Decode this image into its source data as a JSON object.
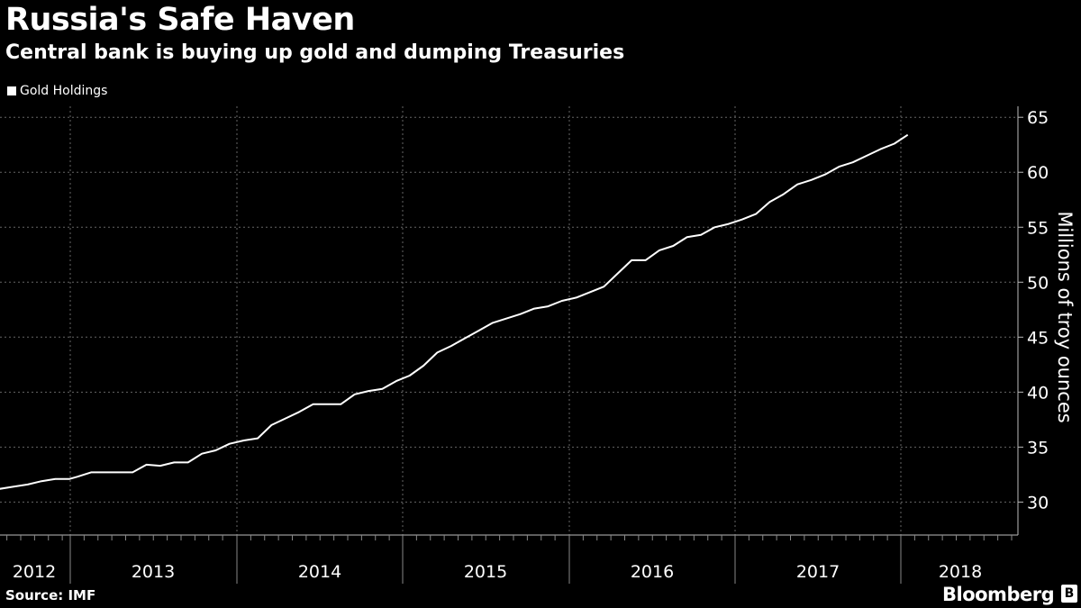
{
  "header": {
    "title": "Russia's Safe Haven",
    "subtitle": "Central bank is buying up gold and dumping Treasuries"
  },
  "footer": {
    "source": "Source: IMF",
    "brand": "Bloomberg"
  },
  "colors": {
    "background": "#000000",
    "line": "#ffffff",
    "grid": "#666666"
  },
  "chart_data": {
    "type": "line",
    "title": "Russia's Safe Haven",
    "subtitle": "Central bank is buying up gold and dumping Treasuries",
    "xlabel": "",
    "ylabel": "Millions of troy ounces",
    "y_axis_position": "right",
    "ylim": [
      27,
      66
    ],
    "yticks": [
      30,
      35,
      40,
      45,
      50,
      55,
      60,
      65
    ],
    "grid": true,
    "legend": "top-left",
    "x_tick_labels": [
      "2012",
      "2013",
      "2014",
      "2015",
      "2016",
      "2017",
      "2018"
    ],
    "series": [
      {
        "name": "Gold Holdings",
        "x": [
          "2012-01",
          "2012-02",
          "2012-03",
          "2012-04",
          "2012-05",
          "2012-06",
          "2012-07",
          "2012-08",
          "2012-09",
          "2012-10",
          "2012-11",
          "2012-12",
          "2013-01",
          "2013-02",
          "2013-03",
          "2013-04",
          "2013-05",
          "2013-06",
          "2013-07",
          "2013-08",
          "2013-09",
          "2013-10",
          "2013-11",
          "2013-12",
          "2014-01",
          "2014-02",
          "2014-03",
          "2014-04",
          "2014-05",
          "2014-06",
          "2014-07",
          "2014-08",
          "2014-09",
          "2014-10",
          "2014-11",
          "2014-12",
          "2015-01",
          "2015-02",
          "2015-03",
          "2015-04",
          "2015-05",
          "2015-06",
          "2015-07",
          "2015-08",
          "2015-09",
          "2015-10",
          "2015-11",
          "2015-12",
          "2016-01",
          "2016-02",
          "2016-03",
          "2016-04",
          "2016-05",
          "2016-06",
          "2016-07",
          "2016-08",
          "2016-09",
          "2016-10",
          "2016-11",
          "2016-12",
          "2017-01",
          "2017-02",
          "2017-03",
          "2017-04",
          "2017-05",
          "2017-06",
          "2017-07",
          "2017-08",
          "2017-09",
          "2017-10",
          "2017-11",
          "2017-12",
          "2018-01",
          "2018-02",
          "2018-03",
          "2018-04",
          "2018-05",
          "2018-06",
          "2018-07",
          "2018-08",
          "2018-09",
          "2018-10",
          "2018-11",
          "2018-12"
        ],
        "values": [
          30.2,
          30.2,
          30.1,
          30.1,
          30.2,
          30.8,
          31.2,
          31.4,
          31.6,
          31.9,
          32.1,
          32.1,
          32.3,
          32.7,
          32.7,
          32.7,
          32.7,
          33.4,
          33.3,
          33.6,
          33.6,
          34.4,
          34.7,
          35.3,
          35.6,
          35.8,
          37.0,
          37.6,
          38.2,
          38.9,
          38.9,
          38.9,
          39.8,
          40.1,
          40.3,
          41.0,
          41.5,
          42.4,
          43.6,
          44.2,
          44.9,
          45.6,
          46.3,
          46.7,
          47.1,
          47.6,
          47.8,
          48.3,
          48.6,
          49.1,
          49.6,
          50.8,
          52.0,
          52.0,
          52.9,
          53.3,
          54.1,
          54.3,
          55.0,
          55.3,
          55.7,
          56.2,
          57.3,
          58.0,
          58.9,
          59.3,
          59.8,
          60.5,
          60.9,
          61.5,
          62.1,
          62.6,
          63.4,
          null,
          null,
          null,
          null,
          null,
          null,
          null,
          null,
          null,
          null,
          null
        ]
      }
    ]
  }
}
